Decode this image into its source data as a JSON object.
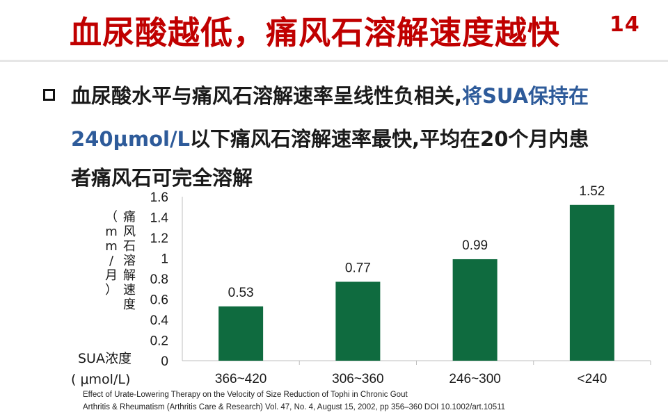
{
  "slide": {
    "title": "血尿酸越低，痛风石溶解速度越快",
    "slide_number": "14",
    "accent_color": "#c00000",
    "highlight_color": "#2e5b9a",
    "bullet_icon": "hollow-square-icon",
    "bullet": {
      "line1_a": "血尿酸水平与痛风石溶解速率呈线性负相关,",
      "line1_b": "将SUA保持在",
      "line2_a": "240μmol/L",
      "line2_b": "以下痛风石溶解速率最快,平均在20个月内患",
      "line3": "者痛风石可完全溶解"
    },
    "reference_line1": "Effect of Urate-Lowering Therapy on the Velocity of Size Reduction of Tophi in Chronic Gout",
    "reference_line2": "Arthritis & Rheumatism (Arthritis Care & Research) Vol. 47, No. 4, August 15, 2002, pp 356–360  DOI 10.1002/art.10511"
  },
  "chart_data": {
    "type": "bar",
    "categories": [
      "366~420",
      "306~360",
      "246~300",
      "<240"
    ],
    "values": [
      0.53,
      0.77,
      0.99,
      1.52
    ],
    "data_labels": [
      "0.53",
      "0.77",
      "0.99",
      "1.52"
    ],
    "ylabel_chars": [
      "痛",
      "风",
      "石",
      "溶",
      "解",
      "速",
      "度"
    ],
    "ylabel_unit_chars": [
      "（",
      "m",
      "m",
      "/",
      "月",
      "）"
    ],
    "xlabel_line1": "SUA浓度",
    "xlabel_line2": "( μmol/L)",
    "ylim": [
      0,
      1.6
    ],
    "yticks": [
      "0",
      "0.2",
      "0.4",
      "0.6",
      "0.8",
      "1",
      "1.2",
      "1.4",
      "1.6"
    ],
    "bar_color": "#0f6b3f",
    "grid": false
  }
}
